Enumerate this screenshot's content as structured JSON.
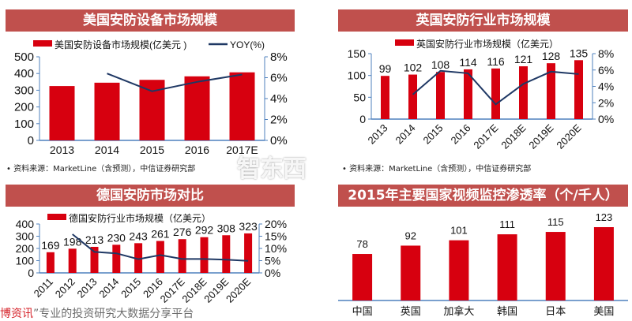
{
  "colors": {
    "bar": "#d7000f",
    "line": "#1f3864",
    "axis": "#4f81bd",
    "title_bg": "#c0504d"
  },
  "source_note": "• 资料来源：MarketLine（含预测），中信证券研究部",
  "watermarks": {
    "left_red": "博资讯",
    "left_rest": "”专业的投资研究大数据分享平台",
    "logo": "智东西"
  },
  "chart_data": [
    {
      "type": "bar",
      "title": "美国安防设备市场规模",
      "legend": [
        "美国安防设备市场规模(亿美元 )",
        "YOY(%)"
      ],
      "categories": [
        "2013",
        "2014",
        "2015",
        "2016",
        "2017E"
      ],
      "series": [
        {
          "name": "美国安防设备市场规模(亿美元 )",
          "type": "bar",
          "values": [
            325,
            345,
            362,
            383,
            407
          ]
        },
        {
          "name": "YOY(%)",
          "type": "line",
          "axis": "right",
          "values": [
            null,
            6.4,
            4.7,
            5.6,
            6.3
          ]
        }
      ],
      "ylim": [
        0,
        500
      ],
      "yticks": [
        "0",
        "100",
        "200",
        "300",
        "400",
        "500"
      ],
      "y2lim": [
        0,
        8
      ],
      "y2ticks": [
        "0%",
        "2%",
        "4%",
        "6%",
        "8%"
      ],
      "data_labels": false,
      "rotate_x": false
    },
    {
      "type": "bar",
      "title": "英国安防行业市场规模",
      "legend": [
        "英国安防行业市场规模（亿美元）"
      ],
      "categories": [
        "2013",
        "2014",
        "2015",
        "2016",
        "2017E",
        "2018E",
        "2019E",
        "2020E"
      ],
      "series": [
        {
          "name": "英国安防行业市场规模（亿美元）",
          "type": "bar",
          "values": [
            99,
            102,
            108,
            114,
            116,
            121,
            128,
            135
          ]
        },
        {
          "type": "line",
          "axis": "right",
          "values": [
            null,
            3.0,
            5.9,
            5.6,
            1.8,
            4.3,
            5.8,
            5.5
          ]
        }
      ],
      "ylim": [
        0,
        150
      ],
      "yticks": [
        "0",
        "50",
        "100",
        "150"
      ],
      "y2lim": [
        0,
        8
      ],
      "y2ticks": [
        "0%",
        "2%",
        "4%",
        "6%",
        "8%"
      ],
      "data_labels": true,
      "rotate_x": true
    },
    {
      "type": "bar",
      "title": "德国安防市场对比",
      "legend": [
        "德国安防行业市场规模（亿美元）"
      ],
      "categories": [
        "2011",
        "2012",
        "2013",
        "2014",
        "2015",
        "2016",
        "2017E",
        "2018E",
        "2019E",
        "2020E"
      ],
      "series": [
        {
          "name": "德国安防行业市场规模（亿美元）",
          "type": "bar",
          "values": [
            169,
            198,
            213,
            230,
            243,
            261,
            276,
            292,
            308,
            323
          ]
        },
        {
          "type": "line",
          "axis": "right",
          "values": [
            null,
            15.8,
            8.6,
            8.0,
            5.6,
            7.3,
            5.7,
            5.7,
            5.4,
            4.9
          ]
        }
      ],
      "ylim": [
        0,
        400
      ],
      "yticks": [
        "0",
        "100",
        "200",
        "300",
        "400"
      ],
      "y2lim": [
        0,
        20
      ],
      "y2ticks": [
        "0%",
        "5%",
        "10%",
        "15%",
        "20%"
      ],
      "data_labels": true,
      "rotate_x": true
    },
    {
      "type": "bar",
      "title": "2015年主要国家视频监控渗透率（个/千人）",
      "categories": [
        "中国",
        "英国",
        "加拿大",
        "韩国",
        "日本",
        "美国"
      ],
      "series": [
        {
          "type": "bar",
          "values": [
            78,
            92,
            101,
            111,
            115,
            123
          ]
        }
      ],
      "ylim": [
        0,
        123
      ],
      "data_labels": true,
      "rotate_x": false
    }
  ]
}
